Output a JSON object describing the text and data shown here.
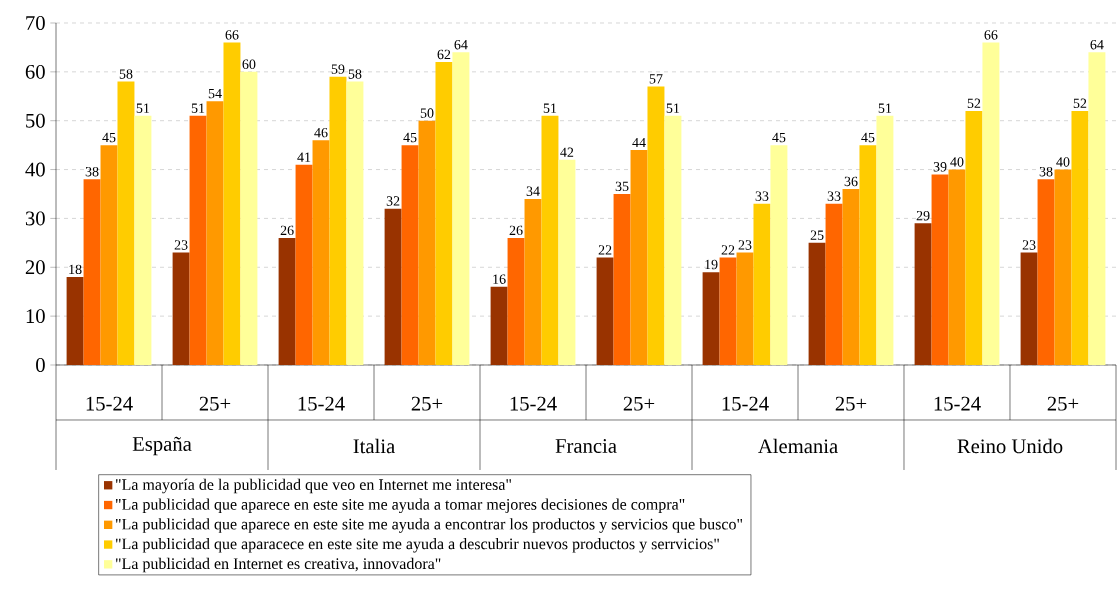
{
  "chart_data": {
    "type": "bar",
    "categories": [
      "15-24",
      "25+",
      "15-24",
      "25+",
      "15-24",
      "25+",
      "15-24",
      "25+",
      "15-24",
      "25+"
    ],
    "series": [
      {
        "name": "\"La mayoría de la publicidad que veo en Internet me interesa\"",
        "color": "#993300",
        "values": [
          18,
          23,
          26,
          32,
          16,
          22,
          19,
          25,
          29,
          23
        ]
      },
      {
        "name": "\"La publicidad que aparece en este site me ayuda a tomar mejores decisiones de compra\"",
        "color": "#ff6600",
        "values": [
          38,
          51,
          41,
          45,
          26,
          35,
          22,
          33,
          39,
          38
        ]
      },
      {
        "name": "\"La publicidad que aparece en este site me ayuda a encontrar los productos y servicios que busco\"",
        "color": "#ff9900",
        "values": [
          45,
          54,
          46,
          50,
          34,
          44,
          23,
          36,
          40,
          40
        ]
      },
      {
        "name": "\"La publicidad que aparacece en este site me ayuda a descubrir nuevos productos y serrvicios\"",
        "color": "#ffcc00",
        "values": [
          58,
          66,
          59,
          62,
          51,
          57,
          33,
          45,
          52,
          52
        ]
      },
      {
        "name": "\"La publicidad en Internet es creativa, innovadora\"",
        "color": "#ffff99",
        "values": [
          51,
          60,
          58,
          64,
          42,
          51,
          45,
          51,
          66,
          64
        ]
      }
    ],
    "annotations": [
      "España",
      "Italia",
      "Francia",
      "Alemania",
      "Reino Unido"
    ],
    "ylim": [
      0,
      70
    ],
    "yticks": [
      0,
      10,
      20,
      30,
      40,
      50,
      60,
      70
    ],
    "grid": "y",
    "legend": "bottom",
    "data_labels": true
  }
}
